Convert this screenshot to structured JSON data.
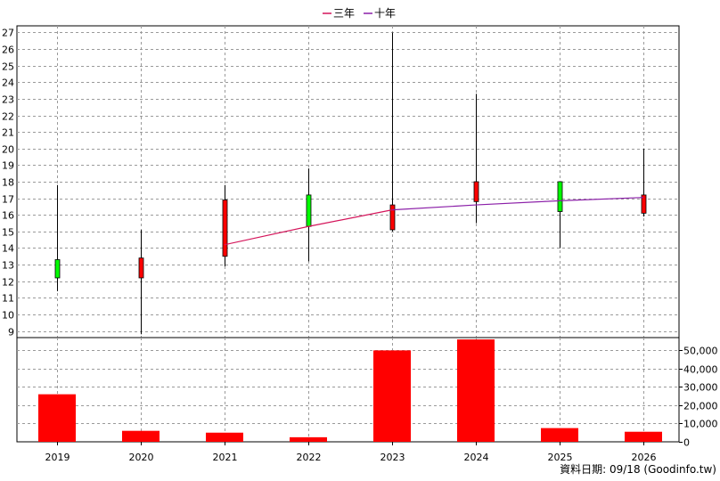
{
  "chart_data": {
    "type": "candlestick-with-volume",
    "categories": [
      "2019",
      "2020",
      "2021",
      "2022",
      "2023",
      "2024",
      "2025",
      "2026"
    ],
    "price": {
      "ylim": [
        8.6,
        27.4
      ],
      "yticks": [
        9,
        10,
        11,
        12,
        13,
        14,
        15,
        16,
        17,
        18,
        19,
        20,
        21,
        22,
        23,
        24,
        25,
        26,
        27
      ],
      "candles": [
        {
          "open": 12.2,
          "close": 13.3,
          "high": 17.8,
          "low": 11.4
        },
        {
          "open": 13.4,
          "close": 12.2,
          "high": 15.1,
          "low": 8.8
        },
        {
          "open": 16.9,
          "close": 13.5,
          "high": 17.8,
          "low": 12.9
        },
        {
          "open": 15.3,
          "close": 17.2,
          "high": 18.8,
          "low": 13.2
        },
        {
          "open": 16.6,
          "close": 15.1,
          "high": 27.0,
          "low": 15.0
        },
        {
          "open": 18.0,
          "close": 16.8,
          "high": 23.3,
          "low": 15.5
        },
        {
          "open": 16.2,
          "close": 18.0,
          "high": 18.0,
          "low": 14.0
        },
        {
          "open": 17.2,
          "close": 16.1,
          "high": 20.0,
          "low": 15.9
        }
      ],
      "up_color": "#00ff00",
      "down_color": "#ff0000",
      "moving_averages": [
        {
          "name": "三年",
          "color": "#d4145a",
          "x": [
            "2021",
            "2022",
            "2023"
          ],
          "values": [
            14.2,
            15.3,
            16.3
          ]
        },
        {
          "name": "十年",
          "color": "#8b1fa8",
          "x": [
            "2023",
            "2024",
            "2025",
            "2026"
          ],
          "values": [
            16.3,
            16.6,
            16.85,
            17.05
          ]
        }
      ]
    },
    "volume": {
      "ylim": [
        0,
        57000
      ],
      "yticks": [
        0,
        10000,
        20000,
        30000,
        40000,
        50000
      ],
      "ytick_labels": [
        "0",
        "10,000",
        "20,000",
        "30,000",
        "40,000",
        "50,000"
      ],
      "values": [
        26000,
        6000,
        5000,
        2500,
        50000,
        56000,
        7500,
        5500
      ],
      "color": "#ff0000"
    },
    "legend": {
      "placement": "top-center",
      "entries": [
        "三年",
        "十年"
      ]
    },
    "grid": true
  },
  "footer": {
    "source": "資料日期: 09/18  (Goodinfo.tw)"
  }
}
